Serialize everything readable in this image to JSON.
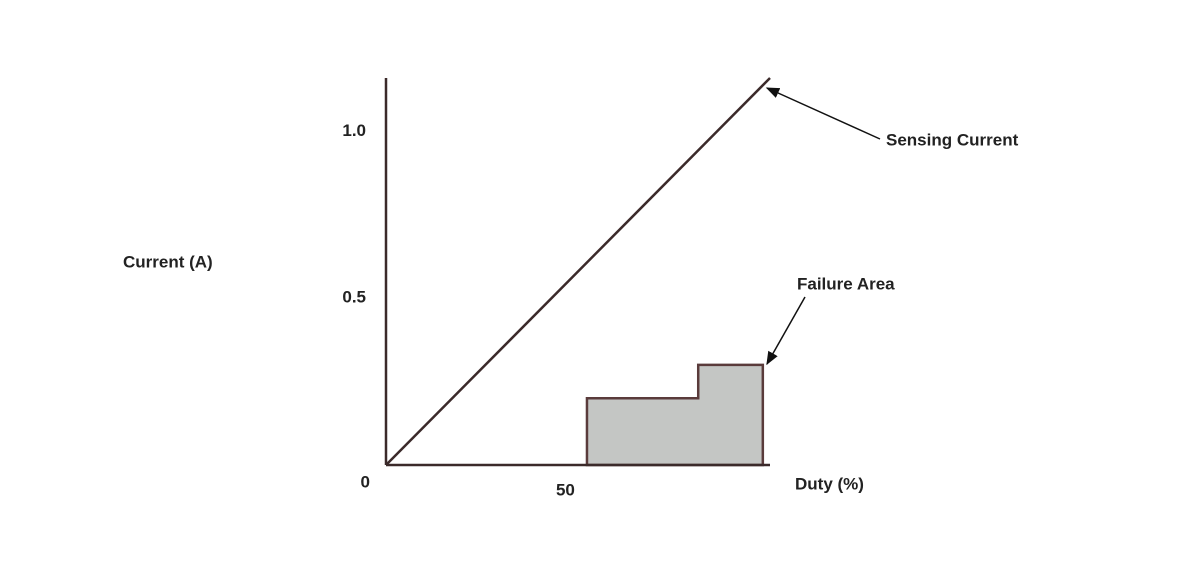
{
  "chart_data": {
    "type": "line",
    "x_label": "Duty (%)",
    "y_label": "Current (A)",
    "xlim": [
      0,
      107
    ],
    "ylim": [
      0,
      1.16
    ],
    "xticks": [
      50
    ],
    "yticks": [
      0,
      0.5,
      {
        "value": 1,
        "label": "1.0"
      }
    ],
    "series": [
      {
        "name": "Sensing Current",
        "type": "line",
        "color": "#3b2a2a",
        "x": [
          0,
          107
        ],
        "values": [
          0,
          1.16
        ]
      },
      {
        "name": "Failure Area",
        "type": "area",
        "color": "#c4c6c4",
        "x": [
          56,
          56,
          87,
          87,
          105,
          105
        ],
        "values": [
          0,
          0.2,
          0.2,
          0.3,
          0.3,
          0
        ]
      }
    ]
  }
}
